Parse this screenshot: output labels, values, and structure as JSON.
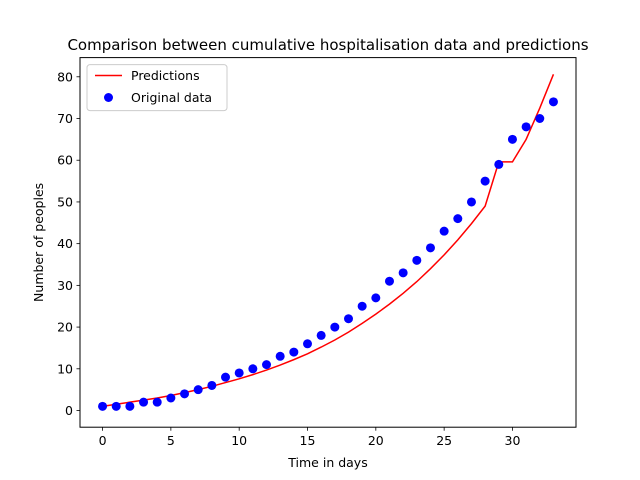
{
  "chart_data": {
    "type": "scatter",
    "title": "Comparison between cumulative hospitalisation data and predictions",
    "xlabel": "Time in days",
    "ylabel": "Number of peoples",
    "xlim": [
      -1.65,
      34.65
    ],
    "ylim": [
      -4.0,
      84.6
    ],
    "xticks": [
      0,
      5,
      10,
      15,
      20,
      25,
      30
    ],
    "yticks": [
      0,
      10,
      20,
      30,
      40,
      50,
      60,
      70,
      80
    ],
    "grid": false,
    "legend_position": "top-left",
    "series": [
      {
        "name": "Predictions",
        "kind": "line",
        "color": "#ff0000",
        "x": [
          0,
          1,
          2,
          3,
          4,
          5,
          6,
          7,
          8,
          9,
          10,
          11,
          12,
          13,
          14,
          15,
          16,
          17,
          18,
          19,
          20,
          21,
          22,
          23,
          24,
          25,
          26,
          27,
          28,
          29,
          30,
          31,
          32,
          33
        ],
        "values": [
          1.0,
          1.5,
          2.0,
          2.5,
          3.0,
          3.6,
          4.3,
          5.0,
          5.8,
          6.7,
          7.6,
          8.6,
          9.7,
          10.9,
          12.2,
          13.6,
          15.2,
          16.9,
          18.8,
          20.9,
          23.1,
          25.5,
          28.1,
          30.9,
          34.0,
          37.3,
          40.9,
          44.8,
          49.0,
          59.6,
          59.6,
          65.0,
          72.5,
          80.6
        ]
      },
      {
        "name": "Original data",
        "kind": "scatter",
        "color": "#0000ff",
        "x": [
          0,
          1,
          2,
          3,
          4,
          5,
          6,
          7,
          8,
          9,
          10,
          11,
          12,
          13,
          14,
          15,
          16,
          17,
          18,
          19,
          20,
          21,
          22,
          23,
          24,
          25,
          26,
          27,
          28,
          29,
          30,
          31,
          32,
          33
        ],
        "values": [
          1,
          1,
          1,
          2,
          2,
          3,
          4,
          5,
          6,
          8,
          9,
          10,
          11,
          13,
          14,
          16,
          18,
          20,
          22,
          25,
          27,
          31,
          33,
          36,
          39,
          43,
          46,
          50,
          55,
          59,
          65,
          68,
          70,
          74
        ]
      }
    ]
  },
  "colors": {
    "axes": "#000000",
    "background": "#ffffff"
  }
}
